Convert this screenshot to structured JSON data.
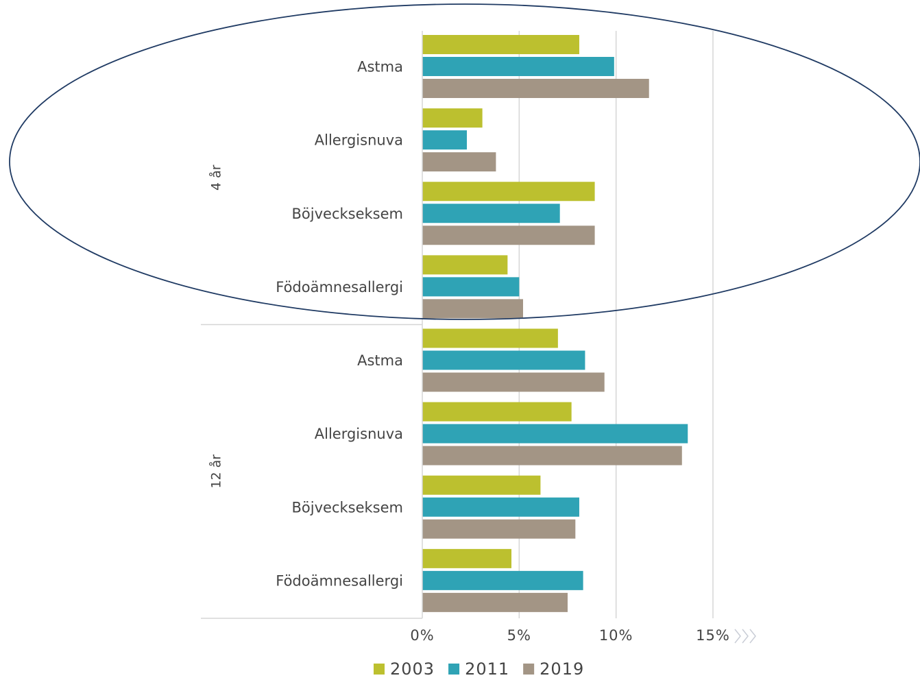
{
  "chart_data": {
    "type": "bar",
    "orientation": "horizontal",
    "groups": [
      "4 år",
      "12 år"
    ],
    "categories": [
      "Astma",
      "Allergisnuva",
      "Böjveckseksem",
      "Födoämnesallergi",
      "Astma",
      "Allergisnuva",
      "Böjveckseksem",
      "Födoämnesallergi"
    ],
    "series": [
      {
        "name": "2003",
        "color": "#bcc02f",
        "values": [
          8.1,
          3.1,
          8.9,
          4.4,
          7.0,
          7.7,
          6.1,
          4.6
        ]
      },
      {
        "name": "2011",
        "color": "#2fa3b5",
        "values": [
          9.9,
          2.3,
          7.1,
          5.0,
          8.4,
          13.7,
          8.1,
          8.3
        ]
      },
      {
        "name": "2019",
        "color": "#a39585",
        "values": [
          11.7,
          3.8,
          8.9,
          5.2,
          9.4,
          13.4,
          7.9,
          7.5
        ]
      }
    ],
    "xlim": [
      0,
      15
    ],
    "xticks": [
      {
        "value": 0,
        "label": "0%"
      },
      {
        "value": 5,
        "label": "5%"
      },
      {
        "value": 10,
        "label": "10%"
      },
      {
        "value": 15,
        "label": "15%"
      }
    ],
    "grid": true
  }
}
